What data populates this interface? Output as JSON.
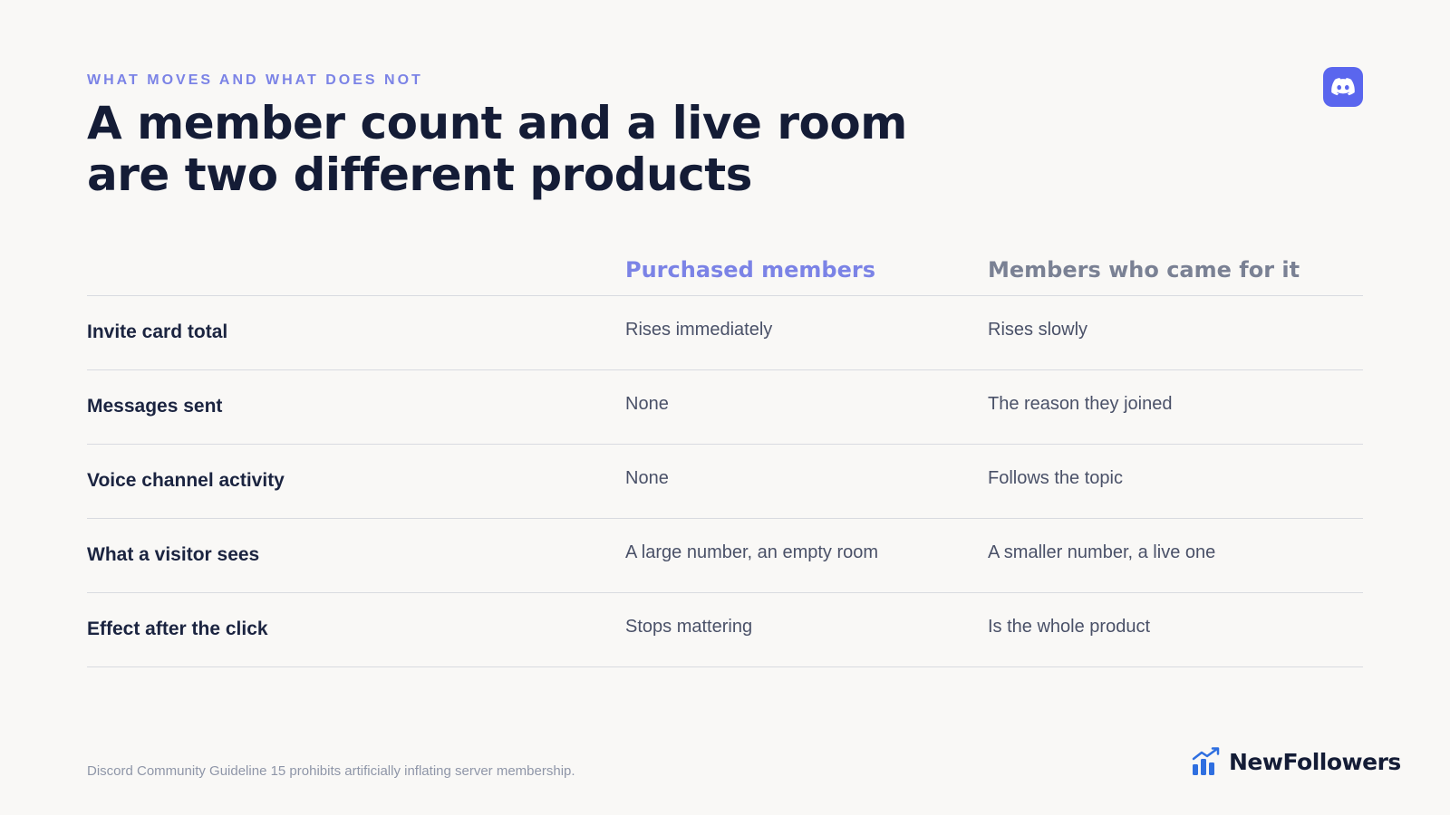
{
  "header": {
    "eyebrow": "WHAT MOVES AND WHAT DOES NOT",
    "title": "A member count and a live room are two different products",
    "badge_icon": "discord-icon"
  },
  "table": {
    "columns": [
      "",
      "Purchased members",
      "Members who came for it"
    ],
    "rows": [
      {
        "label": "Invite card total",
        "purchased": "Rises immediately",
        "organic": "Rises slowly"
      },
      {
        "label": "Messages sent",
        "purchased": "None",
        "organic": "The reason they joined"
      },
      {
        "label": "Voice channel activity",
        "purchased": "None",
        "organic": "Follows the topic"
      },
      {
        "label": "What a visitor sees",
        "purchased": "A large number, an empty room",
        "organic": "A smaller number, a live one"
      },
      {
        "label": "Effect after the click",
        "purchased": "Stops mattering",
        "organic": "Is the whole product"
      }
    ]
  },
  "footer": {
    "note": "Discord Community Guideline 15 prohibits artificially inflating server membership.",
    "brand": "NewFollowers",
    "brand_icon": "growth-chart-icon"
  },
  "colors": {
    "accent": "#7b83e6",
    "discord": "#5a66ee",
    "logo_blue": "#2f6fe0"
  }
}
